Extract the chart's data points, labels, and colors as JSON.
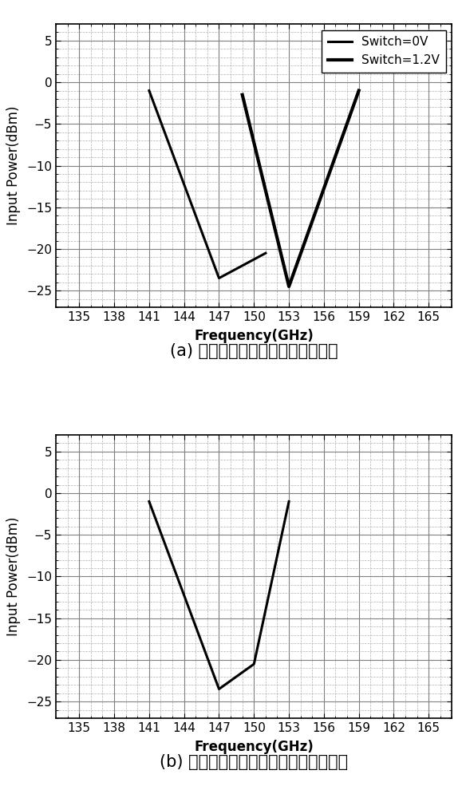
{
  "plot_a": {
    "title": "(a) 加入可变电感的分频灵敏度曲线",
    "curve1": {
      "label": "Switch=0V",
      "x": [
        141,
        147,
        151
      ],
      "y": [
        -1,
        -23.5,
        -20.5
      ]
    },
    "curve2": {
      "label": "Switch=1.2V",
      "x": [
        149,
        153,
        159
      ],
      "y": [
        -1.5,
        -24.5,
        -1
      ]
    }
  },
  "plot_b": {
    "title": "(b) 没有加入可变电感的分频灵敏度曲线",
    "curve1": {
      "label": "",
      "x": [
        141,
        147,
        150,
        153
      ],
      "y": [
        -1,
        -23.5,
        -20.5,
        -1
      ]
    }
  },
  "xlim": [
    133,
    167
  ],
  "ylim": [
    -27,
    7
  ],
  "xticks": [
    135,
    138,
    141,
    144,
    147,
    150,
    153,
    156,
    159,
    162,
    165
  ],
  "yticks": [
    -25,
    -20,
    -15,
    -10,
    -5,
    0,
    5
  ],
  "xlabel": "Frequency(GHz)",
  "ylabel": "Input Power(dBm)",
  "line_color": "#000000",
  "line_width": 2.2,
  "grid_major_color": "#808080",
  "grid_minor_color": "#b0b0b0",
  "bg_color": "#ffffff",
  "caption_fontsize": 15,
  "label_fontsize": 12,
  "tick_fontsize": 11,
  "legend_fontsize": 11
}
